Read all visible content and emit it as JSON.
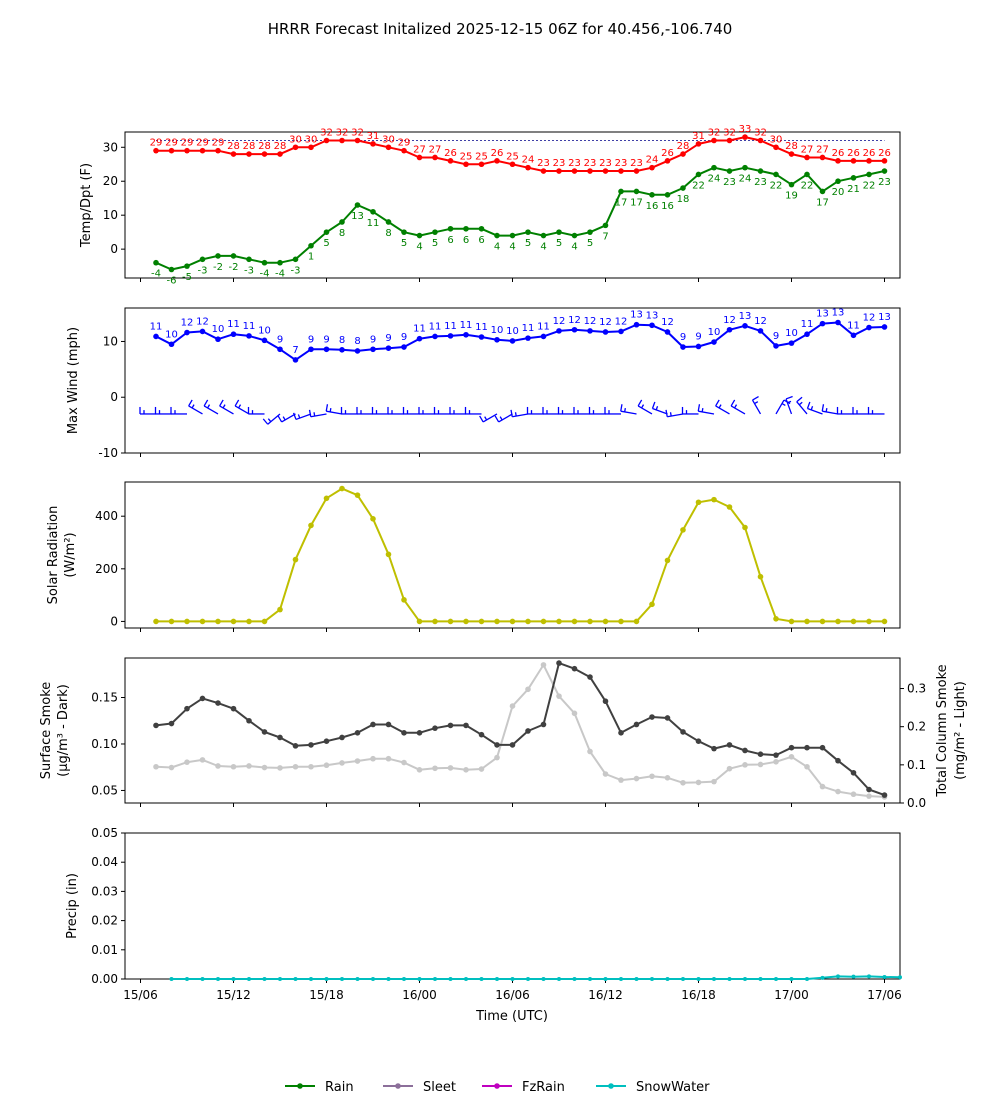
{
  "figure_title": "HRRR Forecast Initalized 2025-12-15 06Z for 40.456,-106.740",
  "time_axis": {
    "xlabel": "Time (UTC)",
    "tick_labels": [
      "15/06",
      "15/12",
      "15/18",
      "16/00",
      "16/06",
      "16/12",
      "16/18",
      "17/00",
      "17/06"
    ],
    "tick_hours": [
      0,
      6,
      12,
      18,
      24,
      30,
      36,
      42,
      48
    ],
    "range_hours": [
      -1,
      49
    ]
  },
  "colors": {
    "temp": "#ff0000",
    "dewpoint": "#008000",
    "wind": "#0000ff",
    "solar": "#bfbf00",
    "smoke_surface": "#404040",
    "smoke_column": "#c8c8c8",
    "rain": "#008000",
    "sleet": "#8c6f9a",
    "fzrain": "#bf00bf",
    "snowwater": "#00bfbf"
  },
  "chart_data": [
    {
      "id": "temp",
      "type": "line",
      "ylabel": "Temp/Dpt (F)",
      "ylim": [
        -8.5,
        34.5
      ],
      "yticks": [
        0,
        10,
        20,
        30
      ],
      "reference_line": 32,
      "series": [
        {
          "name": "Temperature",
          "x_start": 1,
          "values": [
            29,
            29,
            29,
            29,
            29,
            28,
            28,
            28,
            28,
            30,
            30,
            32,
            32,
            32,
            31,
            30,
            29,
            27,
            27,
            26,
            25,
            25,
            26,
            25,
            24,
            23,
            23,
            23,
            23,
            23,
            23,
            23,
            24,
            26,
            28,
            31,
            32,
            32,
            33,
            32,
            30,
            28,
            27,
            27,
            26,
            26,
            26,
            26
          ],
          "labels": [
            "29",
            "29",
            "29",
            "29",
            "29",
            "28",
            "28",
            "28",
            "28",
            "30",
            "30",
            "32",
            "32",
            "32",
            "31",
            "30",
            "29",
            "27",
            "27",
            "26",
            "25",
            "25",
            "26",
            "25",
            "24",
            "23",
            "23",
            "23",
            "23",
            "23",
            "23",
            "23",
            "24",
            "26",
            "28",
            "31",
            "32",
            "32",
            "33",
            "32",
            "30",
            "28",
            "27",
            "27",
            "26",
            "26",
            "26",
            "26"
          ]
        },
        {
          "name": "Dewpoint",
          "x_start": 1,
          "values": [
            -4,
            -6,
            -5,
            -3,
            -2,
            -2,
            -3,
            -4,
            -4,
            -3,
            1,
            5,
            8,
            13,
            11,
            8,
            5,
            4,
            5,
            6,
            6,
            6,
            4,
            4,
            5,
            4,
            5,
            4,
            5,
            7,
            17,
            17,
            16,
            16,
            18,
            22,
            24,
            23,
            24,
            23,
            22,
            19,
            22,
            17,
            20,
            21,
            22,
            23
          ],
          "labels": [
            "-4",
            "-6",
            "-5",
            "-3",
            "-2",
            "-2",
            "-3",
            "-4",
            "-4",
            "-3",
            "1",
            "5",
            "8",
            "13",
            "11",
            "8",
            "5",
            "4",
            "5",
            "6",
            "6",
            "6",
            "4",
            "4",
            "5",
            "4",
            "5",
            "4",
            "5",
            "7",
            "17",
            "17",
            "16",
            "16",
            "18",
            "22",
            "24",
            "23",
            "24",
            "23",
            "22",
            "19",
            "22",
            "17",
            "20",
            "21",
            "22",
            "23"
          ]
        }
      ]
    },
    {
      "id": "wind",
      "type": "line",
      "ylabel": "Max Wind (mph)",
      "ylim": [
        -10,
        16
      ],
      "yticks": [
        -10,
        0,
        10
      ],
      "barb_level": -3,
      "series": [
        {
          "name": "Max Wind",
          "x_start": 1,
          "values": [
            10.9,
            9.5,
            11.6,
            11.8,
            10.4,
            11.3,
            11.0,
            10.2,
            8.6,
            6.7,
            8.6,
            8.6,
            8.5,
            8.3,
            8.6,
            8.8,
            9.0,
            10.5,
            10.9,
            11.0,
            11.2,
            10.8,
            10.3,
            10.1,
            10.6,
            10.9,
            11.9,
            12.1,
            11.9,
            11.7,
            11.8,
            13.0,
            12.9,
            11.7,
            9.0,
            9.1,
            9.9,
            12.1,
            12.8,
            11.9,
            9.2,
            9.7,
            11.3,
            13.2,
            13.4,
            11.1,
            12.5,
            12.6
          ],
          "labels": [
            "11",
            "10",
            "12",
            "12",
            "10",
            "11",
            "11",
            "10",
            "9",
            "7",
            "9",
            "9",
            "8",
            "8",
            "9",
            "9",
            "9",
            "11",
            "11",
            "11",
            "11",
            "11",
            "10",
            "10",
            "11",
            "11",
            "12",
            "12",
            "12",
            "12",
            "12",
            "13",
            "13",
            "12",
            "9",
            "9",
            "10",
            "12",
            "13",
            "12",
            "9",
            "10",
            "11",
            "13",
            "13",
            "11",
            "12",
            "13"
          ],
          "barb_directions_deg": [
            270,
            270,
            270,
            300,
            300,
            300,
            300,
            270,
            230,
            240,
            250,
            260,
            280,
            270,
            270,
            270,
            270,
            270,
            270,
            270,
            270,
            270,
            240,
            240,
            260,
            270,
            270,
            270,
            270,
            270,
            270,
            280,
            300,
            290,
            260,
            270,
            280,
            300,
            300,
            330,
            30,
            340,
            320,
            290,
            280,
            270,
            270,
            270
          ]
        }
      ]
    },
    {
      "id": "solar",
      "type": "line",
      "ylabel": "Solar Radiation",
      "ylabel2": "(W/m²)",
      "ylim": [
        -25,
        530
      ],
      "yticks": [
        0,
        200,
        400
      ],
      "series": [
        {
          "name": "Solar Radiation",
          "x_start": 1,
          "values": [
            0,
            0,
            0,
            0,
            0,
            0,
            0,
            0,
            45,
            235,
            365,
            468,
            505,
            480,
            390,
            255,
            82,
            0,
            0,
            0,
            0,
            0,
            0,
            0,
            0,
            0,
            0,
            0,
            0,
            0,
            0,
            0,
            65,
            232,
            348,
            453,
            463,
            435,
            357,
            170,
            10,
            0,
            0,
            0,
            0,
            0,
            0,
            0
          ]
        }
      ]
    },
    {
      "id": "smoke",
      "type": "line",
      "ylabel": "Surface Smoke",
      "ylabel2": "(μg/m³ - Dark)",
      "ylabel_right": "Total Column Smoke",
      "ylabel_right2": "(mg/m² - Light)",
      "ylim": [
        0.0365,
        0.1925
      ],
      "yticks": [
        0.05,
        0.1,
        0.15
      ],
      "ytick_labels": [
        "0.05",
        "0.10",
        "0.15"
      ],
      "ylim_right": [
        0.0,
        0.38
      ],
      "yticks_right": [
        0.0,
        0.1,
        0.2,
        0.3
      ],
      "ytick_labels_right": [
        "0.0",
        "0.1",
        "0.2",
        "0.3"
      ],
      "series": [
        {
          "name": "Surface Smoke",
          "axis": "left",
          "x_start": 1,
          "values": [
            0.12,
            0.122,
            0.138,
            0.149,
            0.144,
            0.138,
            0.125,
            0.113,
            0.107,
            0.098,
            0.099,
            0.103,
            0.107,
            0.112,
            0.121,
            0.121,
            0.112,
            0.112,
            0.117,
            0.12,
            0.12,
            0.11,
            0.099,
            0.099,
            0.114,
            0.121,
            0.187,
            0.181,
            0.172,
            0.146,
            0.112,
            0.121,
            0.129,
            0.128,
            0.113,
            0.103,
            0.095,
            0.099,
            0.093,
            0.089,
            0.088,
            0.096,
            0.096,
            0.096,
            0.082,
            0.069,
            0.051,
            0.045
          ]
        },
        {
          "name": "Total Column Smoke",
          "axis": "right",
          "x_start": 1,
          "values": [
            0.095,
            0.093,
            0.107,
            0.113,
            0.097,
            0.095,
            0.097,
            0.093,
            0.092,
            0.095,
            0.095,
            0.099,
            0.105,
            0.11,
            0.116,
            0.116,
            0.106,
            0.087,
            0.091,
            0.092,
            0.087,
            0.089,
            0.119,
            0.254,
            0.298,
            0.362,
            0.28,
            0.235,
            0.135,
            0.076,
            0.06,
            0.064,
            0.07,
            0.066,
            0.053,
            0.054,
            0.056,
            0.09,
            0.1,
            0.101,
            0.108,
            0.121,
            0.095,
            0.043,
            0.03,
            0.023,
            0.018,
            0.016
          ]
        }
      ]
    },
    {
      "id": "precip",
      "type": "line",
      "ylabel": "Precip (in)",
      "ylim": [
        0,
        0.05
      ],
      "yticks": [
        0.0,
        0.01,
        0.02,
        0.03,
        0.04,
        0.05
      ],
      "ytick_labels": [
        "0.00",
        "0.01",
        "0.02",
        "0.03",
        "0.04",
        "0.05"
      ],
      "series": [
        {
          "name": "SnowWater",
          "x_start": 2,
          "values": [
            0,
            0,
            0,
            0,
            0,
            0,
            0,
            0,
            0,
            0,
            0,
            0,
            0,
            0,
            0,
            0,
            0,
            0,
            0,
            0,
            0,
            0,
            0,
            0,
            0,
            0,
            0,
            0,
            0,
            0,
            0,
            0,
            0,
            0,
            0,
            0,
            0,
            0,
            0,
            0,
            0,
            0,
            0.0004,
            0.0009,
            0.0008,
            0.0009,
            0.0007,
            0.0006
          ]
        }
      ]
    }
  ],
  "legend": [
    {
      "label": "Rain",
      "color": "#008000"
    },
    {
      "label": "Sleet",
      "color": "#8c6f9a"
    },
    {
      "label": "FzRain",
      "color": "#bf00bf"
    },
    {
      "label": "SnowWater",
      "color": "#00bfbf"
    }
  ]
}
